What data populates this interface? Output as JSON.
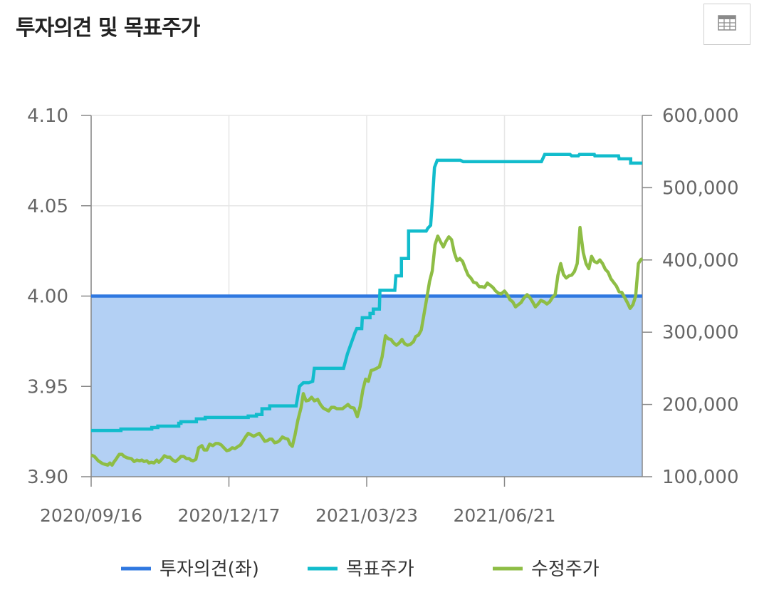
{
  "header": {
    "title": "투자의견 및 목표주가"
  },
  "toolbar": {
    "table_icon": "table-grid-icon"
  },
  "colors": {
    "opinion": "#2f78e0",
    "opinion_fill": "#b3d0f4",
    "target": "#12bccc",
    "price": "#8ebd45",
    "grid": "#e6e6e6",
    "axis": "#666666"
  },
  "chart_data": {
    "type": "line",
    "x_ticks": [
      "2020/09/16",
      "2020/12/17",
      "2021/03/23",
      "2021/06/21"
    ],
    "y_left": {
      "ticks": [
        "4.10",
        "4.05",
        "4.00",
        "3.95",
        "3.90"
      ],
      "min": 3.9,
      "max": 4.1
    },
    "y_right": {
      "ticks": [
        "600,000",
        "500,000",
        "400,000",
        "300,000",
        "200,000",
        "100,000"
      ],
      "min": 100000,
      "max": 600000
    },
    "grid": true,
    "legend_position": "bottom",
    "legend": [
      "투자의견(좌)",
      "목표주가",
      "수정주가"
    ],
    "series": [
      {
        "name": "투자의견(좌)",
        "axis": "left",
        "type": "area",
        "points": [
          [
            0,
            4.0
          ],
          [
            100,
            4.0
          ]
        ]
      },
      {
        "name": "목표주가",
        "axis": "right",
        "type": "step",
        "points": [
          [
            0,
            164000
          ],
          [
            5.4,
            164000
          ],
          [
            5.4,
            166000
          ],
          [
            11,
            166000
          ],
          [
            11,
            168000
          ],
          [
            12.1,
            168000
          ],
          [
            12.1,
            170000
          ],
          [
            15.9,
            170000
          ],
          [
            15.9,
            174000
          ],
          [
            16.3,
            174000
          ],
          [
            16.3,
            176000
          ],
          [
            19.1,
            176000
          ],
          [
            19.1,
            180000
          ],
          [
            20.7,
            180000
          ],
          [
            20.7,
            182000
          ],
          [
            28.5,
            182000
          ],
          [
            28.5,
            184000
          ],
          [
            30,
            184000
          ],
          [
            30,
            186000
          ],
          [
            31,
            186000
          ],
          [
            31,
            194000
          ],
          [
            32.4,
            194000
          ],
          [
            32.4,
            198000
          ],
          [
            37.2,
            198000
          ],
          [
            37.8,
            225000
          ],
          [
            38.5,
            230000
          ],
          [
            39.5,
            230000
          ],
          [
            40.2,
            232000
          ],
          [
            40.5,
            250000
          ],
          [
            45.8,
            250000
          ],
          [
            46.5,
            270000
          ],
          [
            47.9,
            300000
          ],
          [
            48.2,
            305000
          ],
          [
            49.1,
            305000
          ],
          [
            49.2,
            320000
          ],
          [
            50.6,
            320000
          ],
          [
            50.6,
            326000
          ],
          [
            51.2,
            326000
          ],
          [
            51.2,
            332000
          ],
          [
            52.3,
            332000
          ],
          [
            52.4,
            358000
          ],
          [
            55.1,
            358000
          ],
          [
            55.3,
            378000
          ],
          [
            56.3,
            378000
          ],
          [
            56.3,
            402000
          ],
          [
            57.6,
            402000
          ],
          [
            57.6,
            440000
          ],
          [
            60.8,
            440000
          ],
          [
            61.1,
            444000
          ],
          [
            61.6,
            448000
          ],
          [
            61.9,
            480000
          ],
          [
            62.3,
            528000
          ],
          [
            62.8,
            538000
          ],
          [
            67,
            538000
          ],
          [
            67.5,
            536000
          ],
          [
            81.7,
            536000
          ],
          [
            82.3,
            546000
          ],
          [
            86.9,
            546000
          ],
          [
            87.2,
            544000
          ],
          [
            88.4,
            544000
          ],
          [
            88.6,
            546000
          ],
          [
            91.3,
            546000
          ],
          [
            91.4,
            544000
          ],
          [
            95.7,
            544000
          ],
          [
            95.8,
            540000
          ],
          [
            97.9,
            540000
          ],
          [
            97.9,
            534000
          ],
          [
            100,
            534000
          ]
        ]
      },
      {
        "name": "수정주가",
        "axis": "right",
        "type": "line",
        "points": [
          [
            0,
            130000
          ],
          [
            0.6,
            128000
          ],
          [
            1.3,
            122000
          ],
          [
            2.1,
            118000
          ],
          [
            2.6,
            117000
          ],
          [
            3,
            116000
          ],
          [
            3.4,
            119000
          ],
          [
            3.8,
            116000
          ],
          [
            4.1,
            120000
          ],
          [
            4.5,
            124000
          ],
          [
            5.1,
            131000
          ],
          [
            5.6,
            131000
          ],
          [
            6,
            128000
          ],
          [
            6.6,
            126000
          ],
          [
            7.3,
            125000
          ],
          [
            7.8,
            121000
          ],
          [
            8.3,
            123000
          ],
          [
            8.8,
            122000
          ],
          [
            9.2,
            123000
          ],
          [
            9.6,
            121000
          ],
          [
            10.1,
            122000
          ],
          [
            10.5,
            119000
          ],
          [
            10.9,
            120000
          ],
          [
            11.4,
            119000
          ],
          [
            11.9,
            123000
          ],
          [
            12.3,
            120000
          ],
          [
            12.8,
            124000
          ],
          [
            13.3,
            129000
          ],
          [
            13.8,
            127000
          ],
          [
            14.3,
            127000
          ],
          [
            14.8,
            123000
          ],
          [
            15.3,
            121000
          ],
          [
            15.8,
            124000
          ],
          [
            16.3,
            128000
          ],
          [
            16.8,
            128000
          ],
          [
            17.3,
            125000
          ],
          [
            17.8,
            125000
          ],
          [
            18.1,
            123000
          ],
          [
            18.5,
            122000
          ],
          [
            19,
            124000
          ],
          [
            19.5,
            140000
          ],
          [
            20.1,
            143000
          ],
          [
            20.5,
            137000
          ],
          [
            21,
            137000
          ],
          [
            21.5,
            145000
          ],
          [
            22.1,
            143000
          ],
          [
            22.6,
            146000
          ],
          [
            23.1,
            146000
          ],
          [
            23.6,
            144000
          ],
          [
            24.1,
            140000
          ],
          [
            24.6,
            136000
          ],
          [
            25.1,
            137000
          ],
          [
            25.6,
            140000
          ],
          [
            26.1,
            139000
          ],
          [
            26.5,
            141000
          ],
          [
            27.1,
            144000
          ],
          [
            27.6,
            150000
          ],
          [
            28.1,
            156000
          ],
          [
            28.5,
            160000
          ],
          [
            29,
            158000
          ],
          [
            29.5,
            156000
          ],
          [
            30,
            158000
          ],
          [
            30.5,
            160000
          ],
          [
            31,
            155000
          ],
          [
            31.5,
            149000
          ],
          [
            32,
            150000
          ],
          [
            32.4,
            152000
          ],
          [
            32.8,
            152000
          ],
          [
            33.3,
            147000
          ],
          [
            33.8,
            148000
          ],
          [
            34.2,
            150000
          ],
          [
            34.7,
            155000
          ],
          [
            35.2,
            153000
          ],
          [
            35.7,
            152000
          ],
          [
            36.1,
            145000
          ],
          [
            36.5,
            142000
          ],
          [
            37,
            158000
          ],
          [
            37.5,
            178000
          ],
          [
            38.1,
            196000
          ],
          [
            38.5,
            215000
          ],
          [
            39,
            205000
          ],
          [
            39.5,
            206000
          ],
          [
            40,
            210000
          ],
          [
            40.5,
            205000
          ],
          [
            41.1,
            207000
          ],
          [
            41.6,
            200000
          ],
          [
            42.1,
            195000
          ],
          [
            42.6,
            193000
          ],
          [
            43.1,
            191000
          ],
          [
            43.6,
            196000
          ],
          [
            44.1,
            196000
          ],
          [
            44.6,
            194000
          ],
          [
            45.1,
            194000
          ],
          [
            45.6,
            194000
          ],
          [
            46.1,
            197000
          ],
          [
            46.6,
            200000
          ],
          [
            47.1,
            196000
          ],
          [
            47.7,
            195000
          ],
          [
            48.3,
            183000
          ],
          [
            48.8,
            197000
          ],
          [
            49.3,
            220000
          ],
          [
            49.8,
            235000
          ],
          [
            50.3,
            232000
          ],
          [
            50.8,
            247000
          ],
          [
            51.3,
            248000
          ],
          [
            51.8,
            250000
          ],
          [
            52.3,
            252000
          ],
          [
            52.8,
            266000
          ],
          [
            53.4,
            295000
          ],
          [
            53.9,
            291000
          ],
          [
            54.4,
            290000
          ],
          [
            54.9,
            285000
          ],
          [
            55.4,
            282000
          ],
          [
            55.9,
            285000
          ],
          [
            56.4,
            290000
          ],
          [
            56.9,
            284000
          ],
          [
            57.4,
            282000
          ],
          [
            57.9,
            283000
          ],
          [
            58.5,
            287000
          ],
          [
            58.9,
            294000
          ],
          [
            59.4,
            296000
          ],
          [
            59.9,
            303000
          ],
          [
            60.4,
            325000
          ],
          [
            60.9,
            347000
          ],
          [
            61.4,
            370000
          ],
          [
            61.9,
            385000
          ],
          [
            62.4,
            421000
          ],
          [
            62.9,
            433000
          ],
          [
            63.4,
            425000
          ],
          [
            63.9,
            418000
          ],
          [
            64.4,
            426000
          ],
          [
            64.9,
            432000
          ],
          [
            65.4,
            428000
          ],
          [
            65.9,
            410000
          ],
          [
            66.4,
            399000
          ],
          [
            66.9,
            402000
          ],
          [
            67.4,
            398000
          ],
          [
            67.9,
            388000
          ],
          [
            68.4,
            379000
          ],
          [
            68.9,
            375000
          ],
          [
            69.4,
            369000
          ],
          [
            69.9,
            368000
          ],
          [
            70.4,
            363000
          ],
          [
            70.9,
            363000
          ],
          [
            71.4,
            362000
          ],
          [
            71.9,
            368000
          ],
          [
            72.4,
            365000
          ],
          [
            72.9,
            362000
          ],
          [
            73.4,
            357000
          ],
          [
            73.9,
            354000
          ],
          [
            74.4,
            353000
          ],
          [
            75,
            357000
          ],
          [
            75.5,
            352000
          ],
          [
            76,
            345000
          ],
          [
            76.5,
            342000
          ],
          [
            77,
            335000
          ],
          [
            77.5,
            338000
          ],
          [
            78,
            341000
          ],
          [
            78.5,
            347000
          ],
          [
            79.1,
            352000
          ],
          [
            79.6,
            348000
          ],
          [
            80.1,
            342000
          ],
          [
            80.6,
            335000
          ],
          [
            81.1,
            339000
          ],
          [
            81.6,
            344000
          ],
          [
            82.2,
            342000
          ],
          [
            82.7,
            339000
          ],
          [
            83.2,
            342000
          ],
          [
            83.7,
            348000
          ],
          [
            84.2,
            352000
          ],
          [
            84.7,
            379000
          ],
          [
            85.2,
            395000
          ],
          [
            85.7,
            380000
          ],
          [
            86.2,
            375000
          ],
          [
            86.7,
            378000
          ],
          [
            87.2,
            379000
          ],
          [
            87.7,
            384000
          ],
          [
            88.2,
            395000
          ],
          [
            88.7,
            445000
          ],
          [
            89.3,
            410000
          ],
          [
            89.8,
            395000
          ],
          [
            90.3,
            388000
          ],
          [
            90.8,
            405000
          ],
          [
            91.3,
            398000
          ],
          [
            91.8,
            396000
          ],
          [
            92.3,
            400000
          ],
          [
            92.8,
            395000
          ],
          [
            93.3,
            387000
          ],
          [
            93.8,
            383000
          ],
          [
            94.3,
            374000
          ],
          [
            94.8,
            369000
          ],
          [
            95.3,
            364000
          ],
          [
            95.8,
            356000
          ],
          [
            96.3,
            355000
          ],
          [
            96.8,
            348000
          ],
          [
            97.3,
            341000
          ],
          [
            97.8,
            333000
          ],
          [
            98.3,
            338000
          ],
          [
            98.8,
            350000
          ],
          [
            99.3,
            395000
          ],
          [
            99.7,
            400000
          ],
          [
            100,
            402000
          ]
        ]
      }
    ]
  }
}
